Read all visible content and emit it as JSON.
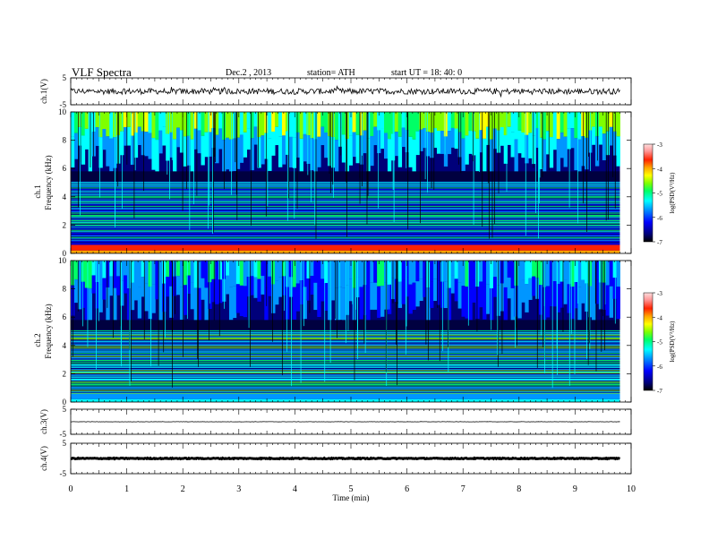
{
  "header": {
    "title": "VLF  Spectra",
    "date": "Dec.2  , 2013",
    "station": "station= ATH",
    "start": "start  UT  =    18: 40: 0"
  },
  "colors": {
    "colormap": [
      "#000000",
      "#00007a",
      "#0000ff",
      "#0096ff",
      "#00ffff",
      "#00ff66",
      "#7fff00",
      "#ffff00",
      "#ffa500",
      "#ff2200",
      "#ff9999",
      "#ffdddd"
    ]
  },
  "chart_data": [
    {
      "id": "ch1-waveform",
      "type": "line",
      "ylabel": "ch.1(V)",
      "ylim": [
        -5,
        5
      ],
      "yticks": [
        "5",
        "-5"
      ],
      "xlim": [
        0,
        10
      ],
      "description_level": 0
    },
    {
      "id": "ch1-spectrogram",
      "type": "heatmap",
      "ylabel_top": "ch.1",
      "ylabel": "Frequency  (kHz)",
      "ylim": [
        0,
        10
      ],
      "yticks": [
        "0",
        "2",
        "4",
        "6",
        "8",
        "10"
      ],
      "xlim": [
        0,
        10
      ],
      "data_end_min": 9.8,
      "colorbar": {
        "label": "log(PSD(V²/Hz)",
        "range": [
          -7,
          -3
        ],
        "ticks": [
          "-3",
          "-4",
          "-5",
          "-6",
          "-7"
        ]
      }
    },
    {
      "id": "ch2-spectrogram",
      "type": "heatmap",
      "ylabel_top": "ch.2",
      "ylabel": "Frequency  (kHz)",
      "ylim": [
        0,
        10
      ],
      "yticks": [
        "0",
        "2",
        "4",
        "6",
        "8",
        "10"
      ],
      "xlim": [
        0,
        10
      ],
      "data_end_min": 9.8,
      "colorbar": {
        "label": "log(PSD(V²/Hz)",
        "range": [
          -7,
          -3
        ],
        "ticks": [
          "-3",
          "-4",
          "-5",
          "-6",
          "-7"
        ]
      }
    },
    {
      "id": "ch3-waveform",
      "type": "line",
      "ylabel": "ch.3(V)",
      "ylim": [
        -5,
        5
      ],
      "yticks": [
        "5",
        "-5"
      ],
      "xlim": [
        0,
        10
      ],
      "level": 0
    },
    {
      "id": "ch4-waveform",
      "type": "line",
      "ylabel": "ch.4(V)",
      "ylim": [
        -5,
        5
      ],
      "yticks": [
        "5",
        "-5"
      ],
      "xlim": [
        0,
        10
      ],
      "level": 0
    }
  ],
  "x_axis": {
    "label": "Time  (min)",
    "range": [
      0,
      10
    ],
    "ticks": [
      "0",
      "1",
      "2",
      "3",
      "4",
      "5",
      "6",
      "7",
      "8",
      "9",
      "10"
    ]
  }
}
